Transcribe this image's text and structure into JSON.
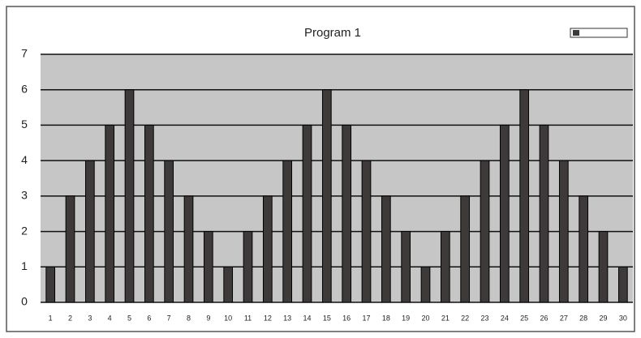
{
  "chart_data": {
    "type": "bar",
    "title": "Program 1",
    "categories": [
      "1",
      "2",
      "3",
      "4",
      "5",
      "6",
      "7",
      "8",
      "9",
      "10",
      "11",
      "12",
      "13",
      "14",
      "15",
      "16",
      "17",
      "18",
      "19",
      "20",
      "21",
      "22",
      "23",
      "24",
      "25",
      "26",
      "27",
      "28",
      "29",
      "30"
    ],
    "values": [
      1,
      3,
      4,
      5,
      6,
      5,
      4,
      3,
      2,
      1,
      2,
      3,
      4,
      5,
      6,
      5,
      4,
      3,
      2,
      1,
      2,
      3,
      4,
      5,
      6,
      5,
      4,
      3,
      2,
      1
    ],
    "color": "#3f3a3a",
    "ylim": [
      0,
      7
    ],
    "yticks": [
      0,
      1,
      2,
      3,
      4,
      5,
      6,
      7
    ],
    "grid": true
  }
}
